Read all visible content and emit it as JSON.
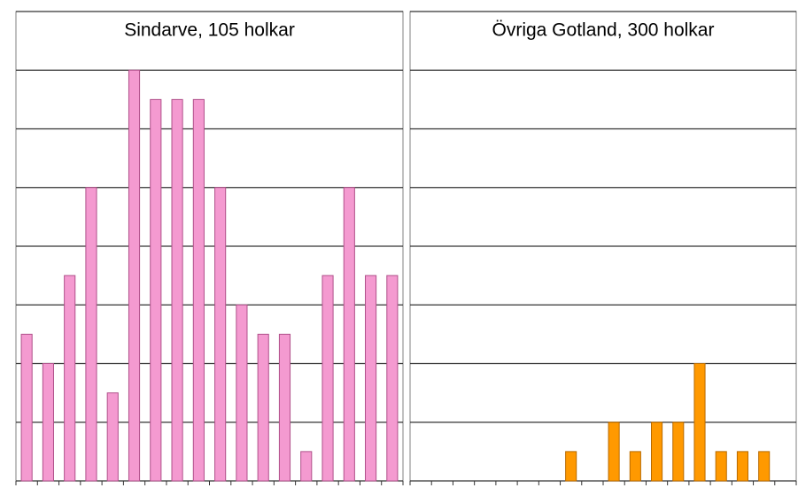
{
  "chart_data": [
    {
      "type": "bar",
      "title": "Sindarve, 105 holkar",
      "categories": [
        null,
        null,
        null,
        null,
        null,
        null,
        null,
        null,
        null,
        null,
        null,
        null,
        null,
        null,
        null,
        null,
        null,
        null
      ],
      "values": [
        2.5,
        2,
        3.5,
        5,
        1.5,
        7,
        6.5,
        6.5,
        6.5,
        5,
        3,
        2.5,
        2.5,
        0.5,
        3.5,
        5,
        3.5,
        3.5
      ],
      "color": "#f49ad0",
      "ylim": [
        0,
        8
      ],
      "yticks": [
        0,
        1,
        2,
        3,
        4,
        5,
        6,
        7,
        8
      ],
      "grid": true
    },
    {
      "type": "bar",
      "title": "Övriga Gotland, 300 holkar",
      "categories": [
        null,
        null,
        null,
        null,
        null,
        null,
        null,
        null,
        null,
        null,
        null,
        null,
        null,
        null,
        null,
        null,
        null,
        null
      ],
      "values": [
        0,
        0,
        0,
        0,
        0,
        0,
        0,
        0.5,
        0,
        1,
        0.5,
        1,
        1,
        2,
        0.5,
        0.5,
        0.5,
        0
      ],
      "color": "#ff9900",
      "ylim": [
        0,
        8
      ],
      "yticks": [
        0,
        1,
        2,
        3,
        4,
        5,
        6,
        7,
        8
      ],
      "grid": true
    }
  ]
}
